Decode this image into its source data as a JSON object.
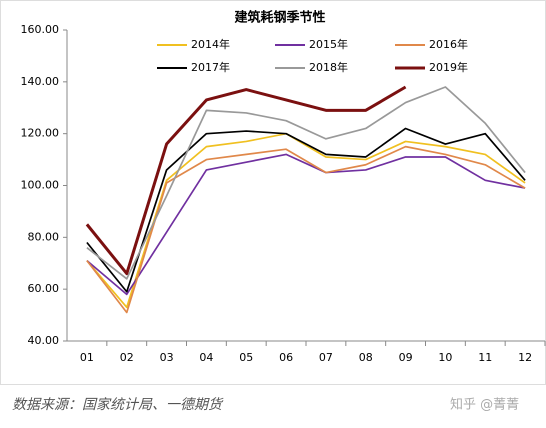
{
  "chart_data": {
    "type": "line",
    "title": "建筑耗钢季节性",
    "categories": [
      "01",
      "02",
      "03",
      "04",
      "05",
      "06",
      "07",
      "08",
      "09",
      "10",
      "11",
      "12"
    ],
    "series": [
      {
        "name": "2014年",
        "color": "#f0c020",
        "values": [
          71,
          53,
          102,
          115,
          117,
          120,
          111,
          110,
          117,
          115,
          112,
          101
        ]
      },
      {
        "name": "2015年",
        "color": "#7030a0",
        "values": [
          71,
          58,
          82,
          106,
          109,
          112,
          105,
          106,
          111,
          111,
          102,
          99
        ]
      },
      {
        "name": "2016年",
        "color": "#e0884a",
        "values": [
          71,
          51,
          101,
          110,
          112,
          114,
          105,
          108,
          115,
          112,
          108,
          99
        ]
      },
      {
        "name": "2017年",
        "color": "#000000",
        "values": [
          78,
          59,
          106,
          120,
          121,
          120,
          112,
          111,
          122,
          116,
          120,
          102
        ]
      },
      {
        "name": "2018年",
        "color": "#999999",
        "values": [
          76,
          64,
          96,
          129,
          128,
          125,
          118,
          122,
          132,
          138,
          124,
          105
        ]
      },
      {
        "name": "2019年",
        "color": "#7b1010",
        "values": [
          85,
          66,
          116,
          133,
          137,
          133,
          129,
          129,
          138,
          null,
          null,
          null
        ]
      }
    ],
    "ylim": [
      40,
      160
    ],
    "yticks": [
      {
        "value": 40,
        "label": "40.00"
      },
      {
        "value": 60,
        "label": "60.00"
      },
      {
        "value": 80,
        "label": "80.00"
      },
      {
        "value": 100,
        "label": "100.00"
      },
      {
        "value": 120,
        "label": "120.00"
      },
      {
        "value": 140,
        "label": "140.00"
      },
      {
        "value": 160,
        "label": "160.00"
      }
    ],
    "source": "数据来源：国家统计局、一德期货",
    "watermark": "知乎 @菁菁"
  }
}
